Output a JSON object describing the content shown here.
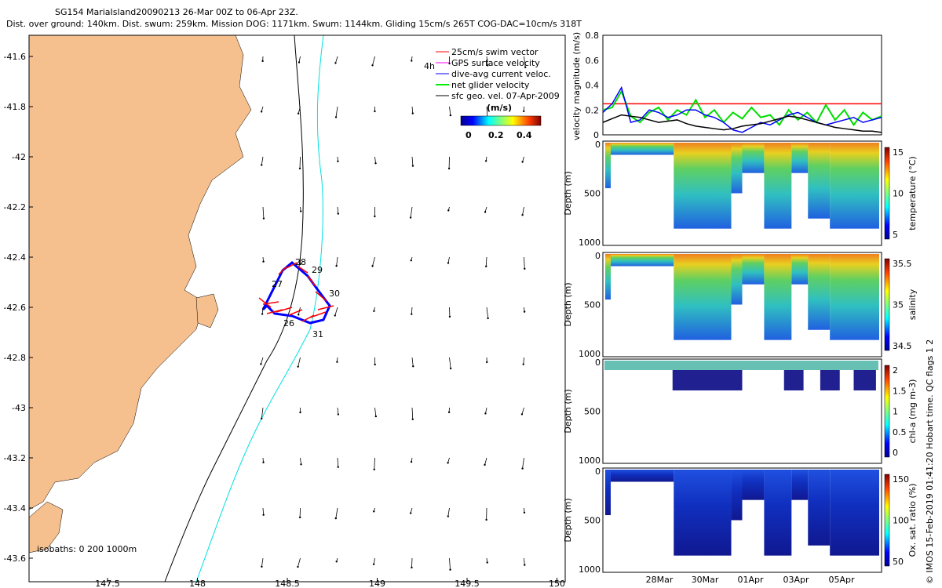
{
  "header": {
    "line1": "SG154 MariaIsland20090213 26-Mar 00Z to 06-Apr 23Z.",
    "line2": "Dist. over ground: 140km. Dist. swum: 259km. Mission DOG: 1171km. Swum: 1144km. Gliding 15cm/s 265T COG-DAC=10cm/s 318T"
  },
  "map": {
    "lat_ticks": [
      "-41.6",
      "-41.8",
      "-42",
      "-42.2",
      "-42.4",
      "-42.6",
      "-42.8",
      "-43",
      "-43.2",
      "-43.4",
      "-43.6"
    ],
    "lon_ticks": [
      "147.5",
      "148",
      "148.5",
      "149",
      "149.5",
      "150"
    ],
    "legend": [
      {
        "label": "25cm/s swim vector",
        "color": "#ff0000"
      },
      {
        "label": "GPS surface velocity",
        "color": "#ff00ff"
      },
      {
        "label": "dive-avg current veloc.",
        "color": "#0000ff"
      },
      {
        "label": "net glider velocity",
        "color": "#00ee00"
      },
      {
        "label": "sfc geo. vel. 07-Apr-2009",
        "color": "#000000"
      }
    ],
    "colorbar_title": "(m/s)",
    "colorbar_ticks": [
      "0",
      "0.2",
      "0.4"
    ],
    "label_4h": "4h",
    "isobaths": "isobaths: 0   200  1000m",
    "track_labels": [
      "28",
      "29",
      "30",
      "27",
      "26",
      "31"
    ]
  },
  "chart_data": [
    {
      "type": "line",
      "ylabel": "velocity magnitude (m/s)",
      "yticks": [
        "0",
        "0.2",
        "0.4",
        "0.6",
        "0.8"
      ],
      "ylim": [
        0,
        0.8
      ],
      "xlim_days": [
        0,
        12
      ],
      "series": [
        {
          "color": "#ff0000",
          "x": [
            0,
            12
          ],
          "y": [
            0.25,
            0.25
          ]
        },
        {
          "color": "#00dd00",
          "x": [
            0,
            0.4,
            0.8,
            1.2,
            1.6,
            2,
            2.4,
            2.8,
            3.2,
            3.6,
            4,
            4.4,
            4.8,
            5.2,
            5.6,
            6,
            6.4,
            6.8,
            7.2,
            7.6,
            8,
            8.4,
            8.8,
            9.2,
            9.6,
            10,
            10.4,
            10.8,
            11.2,
            11.6,
            12
          ],
          "y": [
            0.2,
            0.22,
            0.35,
            0.15,
            0.1,
            0.18,
            0.22,
            0.12,
            0.2,
            0.16,
            0.28,
            0.14,
            0.2,
            0.1,
            0.18,
            0.13,
            0.22,
            0.14,
            0.16,
            0.08,
            0.2,
            0.12,
            0.18,
            0.1,
            0.24,
            0.12,
            0.2,
            0.08,
            0.18,
            0.12,
            0.15
          ]
        },
        {
          "color": "#0000ff",
          "x": [
            0,
            0.4,
            0.8,
            1.2,
            1.6,
            2,
            2.4,
            2.8,
            3.2,
            3.6,
            4,
            4.4,
            4.8,
            5.2,
            5.6,
            6,
            6.4,
            6.8,
            7.2,
            7.6,
            8,
            8.4,
            8.8,
            9.2,
            9.6,
            10,
            10.4,
            10.8,
            11.2,
            11.6,
            12
          ],
          "y": [
            0.18,
            0.25,
            0.38,
            0.1,
            0.12,
            0.2,
            0.18,
            0.14,
            0.16,
            0.2,
            0.2,
            0.16,
            0.14,
            0.1,
            0.04,
            0.02,
            0.06,
            0.1,
            0.08,
            0.12,
            0.16,
            0.18,
            0.14,
            0.1,
            0.08,
            0.1,
            0.12,
            0.14,
            0.1,
            0.12,
            0.14
          ]
        },
        {
          "color": "#000000",
          "x": [
            0,
            0.4,
            0.8,
            1.2,
            1.6,
            2,
            2.4,
            2.8,
            3.2,
            3.6,
            4,
            4.4,
            4.8,
            5.2,
            5.6,
            6,
            6.4,
            6.8,
            7.2,
            7.6,
            8,
            8.4,
            8.8,
            9.2,
            9.6,
            10,
            10.4,
            10.8,
            11.2,
            11.6,
            12
          ],
          "y": [
            0.1,
            0.13,
            0.16,
            0.15,
            0.14,
            0.12,
            0.1,
            0.11,
            0.12,
            0.09,
            0.07,
            0.06,
            0.05,
            0.04,
            0.05,
            0.07,
            0.08,
            0.09,
            0.11,
            0.13,
            0.15,
            0.14,
            0.12,
            0.1,
            0.08,
            0.06,
            0.05,
            0.04,
            0.03,
            0.03,
            0.02
          ]
        }
      ]
    },
    {
      "type": "scatter",
      "ylabel": "Depth (m)",
      "cbar_label": "temperature (°C)",
      "cbar_ticks": [
        "15",
        "10",
        "5"
      ],
      "yticks": [
        "0",
        "500",
        "1000"
      ]
    },
    {
      "type": "scatter",
      "ylabel": "Depth (m)",
      "cbar_label": "salinity",
      "cbar_ticks": [
        "35.5",
        "35",
        "34.5"
      ],
      "yticks": [
        "0",
        "500",
        "1000"
      ]
    },
    {
      "type": "scatter",
      "ylabel": "Depth (m)",
      "cbar_label": "chl-a (mg m-3)",
      "cbar_ticks": [
        "2",
        "1.5",
        "1",
        "0.5",
        "0"
      ],
      "yticks": [
        "0",
        "500",
        "1000"
      ]
    },
    {
      "type": "scatter",
      "ylabel": "Depth (m)",
      "cbar_label": "Ox. sat. ratio (%)",
      "cbar_ticks": [
        "150",
        "100",
        "50"
      ],
      "yticks": [
        "0",
        "500",
        "1000"
      ],
      "xticks": [
        "28Mar",
        "30Mar",
        "01Apr",
        "03Apr",
        "05Apr"
      ]
    }
  ],
  "footer": "© IMOS 15-Feb-2019 01:41:20 Hobart time. QC flags 1  2",
  "colors": {
    "land": "#f6c08e",
    "isobath200": "#000000",
    "isobath1000": "#00e0e0"
  }
}
